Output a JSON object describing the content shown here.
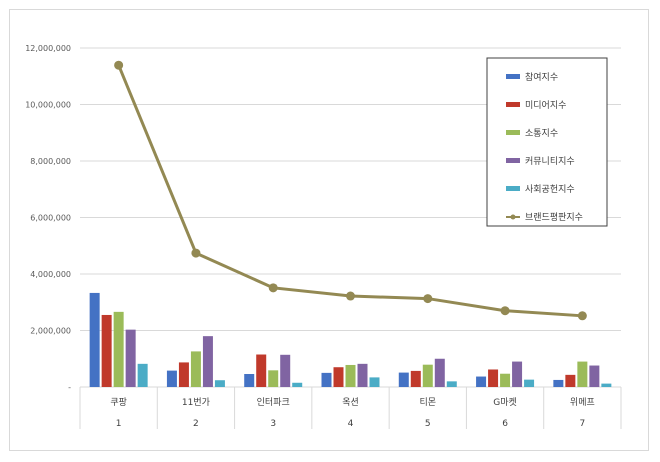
{
  "chart_data": {
    "type": "bar",
    "categories": [
      "쿠팡",
      "11번가",
      "인터파크",
      "옥션",
      "티몬",
      "G마켓",
      "위메프"
    ],
    "category_ranks": [
      "1",
      "2",
      "3",
      "4",
      "5",
      "6",
      "7"
    ],
    "ylim": [
      0,
      12000000
    ],
    "yticks": [
      "-",
      "2,000,000",
      "4,000,000",
      "6,000,000",
      "8,000,000",
      "10,000,000",
      "12,000,000"
    ],
    "ytick_values": [
      0,
      2000000,
      4000000,
      6000000,
      8000000,
      10000000,
      12000000
    ],
    "grid": true,
    "legend_position": "top-right",
    "series": [
      {
        "name": "참여지수",
        "color": "#4472c4",
        "values": [
          3330000,
          580000,
          460000,
          500000,
          510000,
          370000,
          250000
        ]
      },
      {
        "name": "미디어지수",
        "color": "#c0392b",
        "values": [
          2550000,
          870000,
          1150000,
          700000,
          570000,
          620000,
          430000
        ]
      },
      {
        "name": "소통지수",
        "color": "#9bbb59",
        "values": [
          2660000,
          1260000,
          590000,
          780000,
          790000,
          470000,
          900000
        ]
      },
      {
        "name": "커뮤니티지수",
        "color": "#8064a2",
        "values": [
          2030000,
          1800000,
          1140000,
          820000,
          1000000,
          900000,
          760000
        ]
      },
      {
        "name": "사회공헌지수",
        "color": "#4bacc6",
        "values": [
          820000,
          240000,
          150000,
          340000,
          200000,
          260000,
          120000
        ]
      }
    ],
    "line_series": {
      "name": "브랜드평판지수",
      "color": "#938953",
      "values": [
        11390000,
        4740000,
        3510000,
        3220000,
        3130000,
        2700000,
        2520000
      ]
    }
  }
}
